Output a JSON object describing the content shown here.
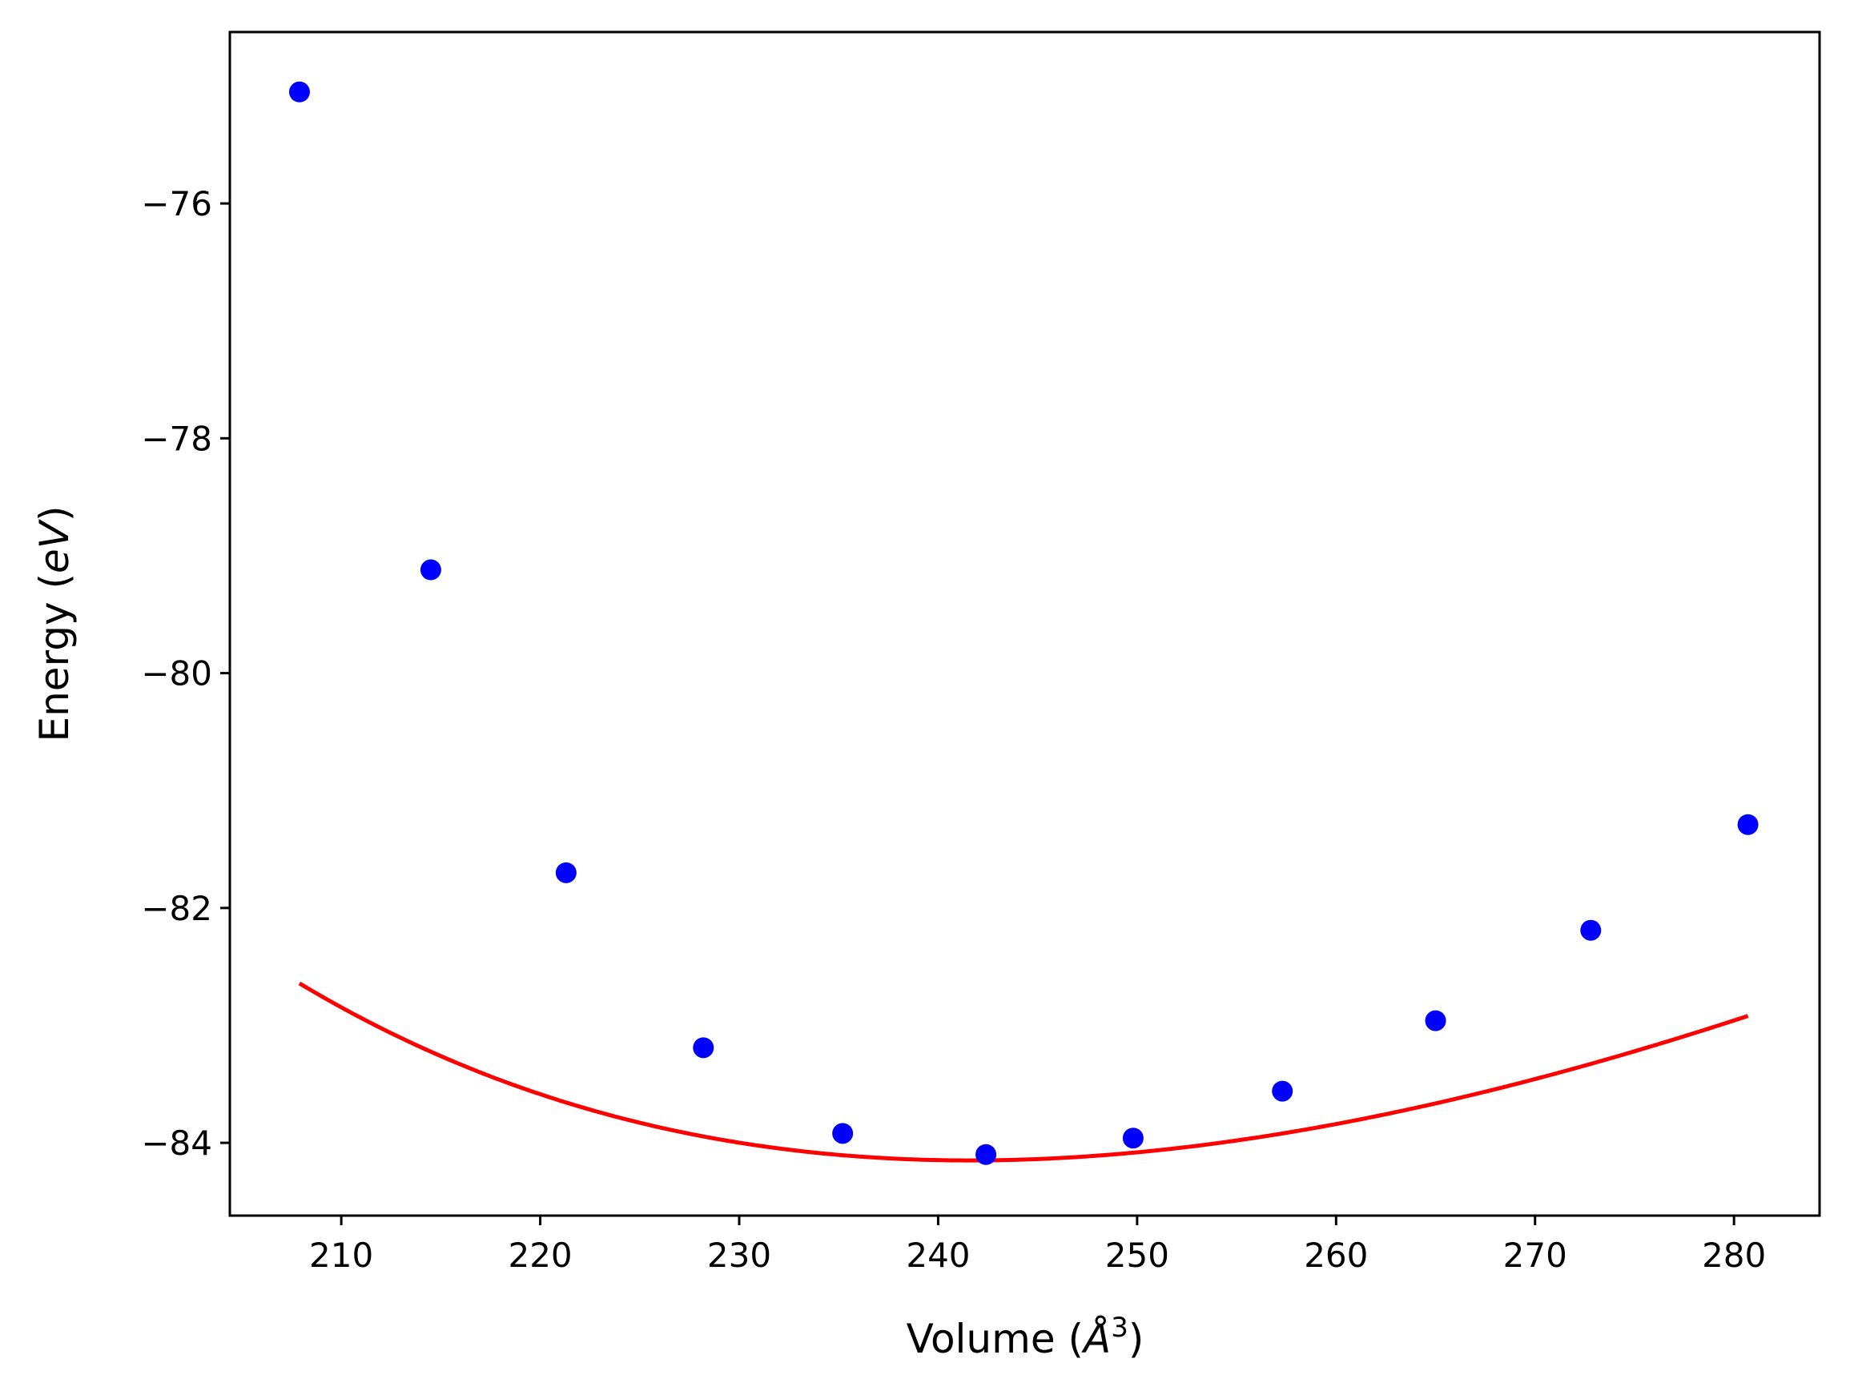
{
  "chart_data": {
    "type": "scatter",
    "title": "",
    "xlabel": "Volume",
    "xlabel_unit": "Å",
    "xlabel_exponent": "3",
    "ylabel": "Energy",
    "ylabel_unit": "eV",
    "xlim": [
      204.4,
      284.3
    ],
    "ylim": [
      -84.62,
      -74.54
    ],
    "xticks": [
      210,
      220,
      230,
      240,
      250,
      260,
      270,
      280
    ],
    "xtick_labels": [
      "210",
      "220",
      "230",
      "240",
      "250",
      "260",
      "270",
      "280"
    ],
    "yticks": [
      -76,
      -78,
      -80,
      -82,
      -84
    ],
    "ytick_labels": [
      "−76",
      "−78",
      "−80",
      "−82",
      "−84"
    ],
    "grid": false,
    "series": [
      {
        "type": "scatter",
        "color": "#0000ff",
        "x": [
          207.9,
          214.5,
          221.3,
          228.2,
          235.2,
          242.4,
          249.8,
          257.3,
          265.0,
          272.8,
          280.7
        ],
        "y": [
          -75.05,
          -79.12,
          -81.7,
          -83.19,
          -83.92,
          -84.1,
          -83.96,
          -83.56,
          -82.96,
          -82.19,
          -81.29
        ]
      },
      {
        "type": "line",
        "color": "#ff0000",
        "fit": "birch-murnaghan",
        "params": {
          "E0": -84.15,
          "V0": 241.6,
          "B0_eV_per_A3": 0.5,
          "B0_prime": 4.0
        },
        "x_range": [
          207.9,
          280.7
        ]
      }
    ]
  }
}
